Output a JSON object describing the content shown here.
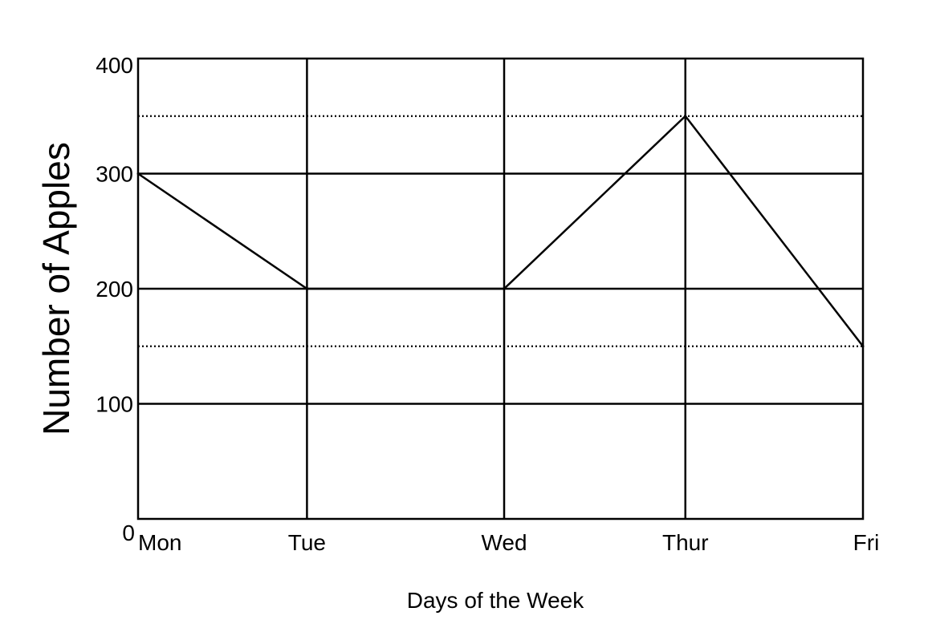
{
  "chart_data": {
    "type": "line",
    "title": "",
    "xlabel": "Days of the Week",
    "ylabel": "Number of Apples",
    "categories": [
      "Mon",
      "Tue",
      "Wed",
      "Thur",
      "Fri"
    ],
    "x_positions": [
      0,
      0.233,
      0.505,
      0.755,
      1.0
    ],
    "series": [
      {
        "values": [
          300,
          200,
          200,
          350,
          150
        ]
      }
    ],
    "ylim": [
      0,
      400
    ],
    "y_ticks": [
      0,
      100,
      200,
      300,
      400
    ],
    "y_tick_labels": [
      "0",
      "100",
      "200",
      "300",
      "400"
    ],
    "minor_gridlines_dotted": [
      150,
      350
    ],
    "grid": true,
    "legend": "none",
    "colors": {
      "line": "#000000",
      "grid": "#000000",
      "background": "#ffffff"
    }
  }
}
